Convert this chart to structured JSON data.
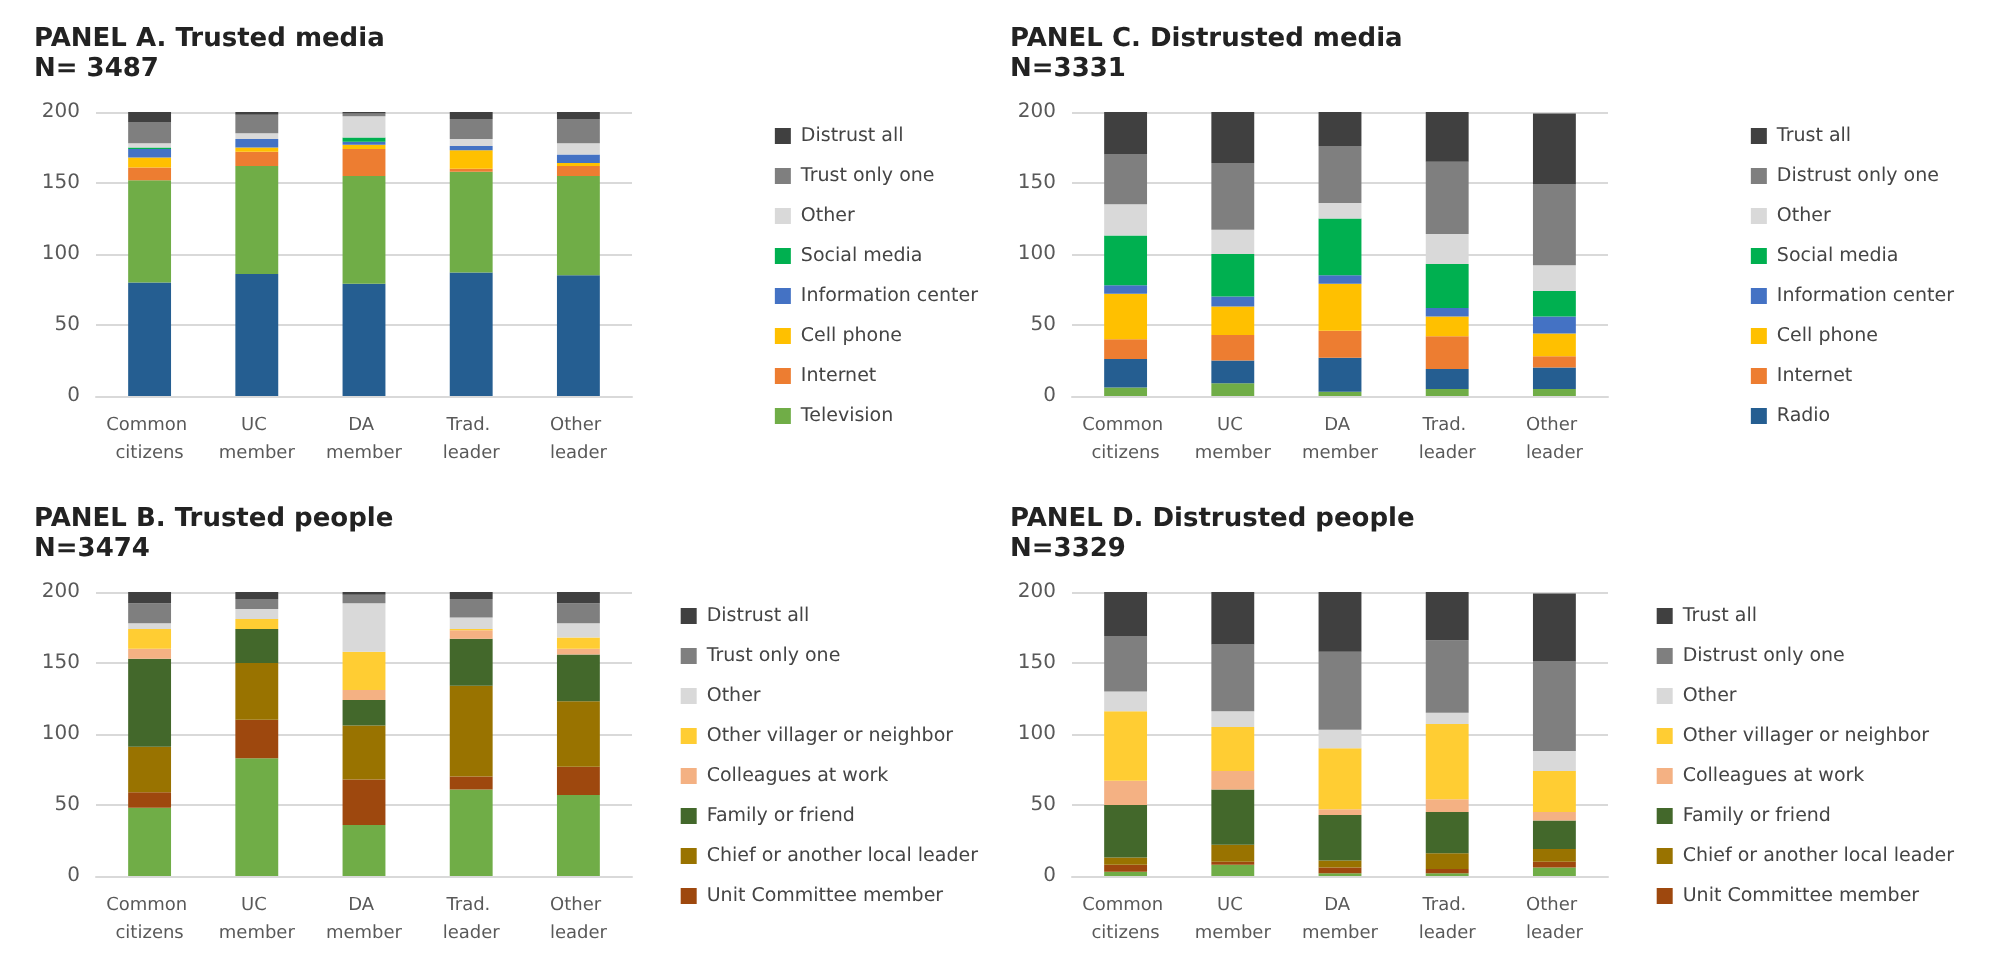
{
  "chart_data": [
    {
      "type": "bar",
      "title": "PANEL A. Trusted media",
      "subtitle": "N= 3487",
      "categories": [
        "Common citizens",
        "UC member",
        "DA member",
        "Trad. leader",
        "Other leader"
      ],
      "stacked": true,
      "ylim": [
        0,
        200
      ],
      "yticks": [
        0,
        50,
        100,
        150,
        200
      ],
      "grid": "y",
      "legend": "right",
      "series": [
        {
          "color": "#255e91",
          "values": [
            80,
            86,
            79,
            87,
            85
          ]
        },
        {
          "name": "Television",
          "color": "#70ad47",
          "values": [
            72,
            76,
            76,
            71,
            70
          ]
        },
        {
          "name": "Internet",
          "color": "#ed7d31",
          "values": [
            9,
            10,
            19,
            2,
            7
          ]
        },
        {
          "name": "Cell phone",
          "color": "#ffc000",
          "values": [
            7,
            3,
            3,
            13,
            2
          ]
        },
        {
          "name": "Information center",
          "color": "#4472c4",
          "values": [
            6,
            6,
            2,
            3,
            6
          ]
        },
        {
          "name": "Social media",
          "color": "#00b050",
          "values": [
            1,
            0,
            3,
            0,
            0
          ]
        },
        {
          "name": "Other",
          "color": "#d9d9d9",
          "values": [
            3,
            4,
            15,
            5,
            8
          ]
        },
        {
          "name": "Trust only one",
          "color": "#7f7f7f",
          "values": [
            15,
            13,
            2,
            14,
            17
          ]
        },
        {
          "name": "Distrust all",
          "color": "#404040",
          "values": [
            7,
            2,
            1,
            5,
            5
          ]
        }
      ]
    },
    {
      "type": "bar",
      "title": "PANEL C. Distrusted media",
      "subtitle": "N=3331",
      "categories": [
        "Common citizens",
        "UC member",
        "DA member",
        "Trad. leader",
        "Other leader"
      ],
      "stacked": true,
      "ylim": [
        0,
        200
      ],
      "yticks": [
        0,
        50,
        100,
        150,
        200
      ],
      "grid": "y",
      "legend": "right",
      "series": [
        {
          "color": "#70ad47",
          "values": [
            6,
            9,
            3,
            5,
            5
          ]
        },
        {
          "name": "Radio",
          "color": "#255e91",
          "values": [
            20,
            16,
            24,
            14,
            15
          ]
        },
        {
          "name": "Internet",
          "color": "#ed7d31",
          "values": [
            14,
            18,
            19,
            23,
            8
          ]
        },
        {
          "name": "Cell phone",
          "color": "#ffc000",
          "values": [
            32,
            20,
            33,
            14,
            16
          ]
        },
        {
          "name": "Information center",
          "color": "#4472c4",
          "values": [
            6,
            7,
            6,
            6,
            12
          ]
        },
        {
          "name": "Social media",
          "color": "#00b050",
          "values": [
            35,
            30,
            40,
            31,
            18
          ]
        },
        {
          "name": "Other",
          "color": "#d9d9d9",
          "values": [
            22,
            17,
            11,
            21,
            18
          ]
        },
        {
          "name": "Distrust only one",
          "color": "#7f7f7f",
          "values": [
            35,
            47,
            40,
            51,
            57
          ]
        },
        {
          "name": "Trust all",
          "color": "#404040",
          "values": [
            30,
            36,
            24,
            35,
            50
          ]
        }
      ]
    },
    {
      "type": "bar",
      "title": "PANEL B. Trusted people",
      "subtitle": "N=3474",
      "categories": [
        "Common citizens",
        "UC member",
        "DA member",
        "Trad. leader",
        "Other leader"
      ],
      "stacked": true,
      "ylim": [
        0,
        200
      ],
      "yticks": [
        0,
        50,
        100,
        150,
        200
      ],
      "grid": "y",
      "legend": "right",
      "series": [
        {
          "color": "#70ad47",
          "values": [
            48,
            83,
            36,
            61,
            57
          ]
        },
        {
          "name": "Unit Committee member",
          "color": "#9e480e",
          "values": [
            11,
            27,
            32,
            9,
            20
          ]
        },
        {
          "name": "Chief or another local leader",
          "color": "#997300",
          "values": [
            32,
            40,
            38,
            64,
            46
          ]
        },
        {
          "name": "Family or friend",
          "color": "#43682b",
          "values": [
            62,
            24,
            18,
            33,
            33
          ]
        },
        {
          "name": "Colleagues at work",
          "color": "#f4b183",
          "values": [
            7,
            0,
            7,
            6,
            4
          ]
        },
        {
          "name": "Other villager or neighbor",
          "color": "#ffcd33",
          "values": [
            14,
            7,
            27,
            1,
            8
          ]
        },
        {
          "name": "Other",
          "color": "#d9d9d9",
          "values": [
            4,
            7,
            34,
            8,
            10
          ]
        },
        {
          "name": "Trust only one",
          "color": "#7f7f7f",
          "values": [
            14,
            7,
            6,
            13,
            14
          ]
        },
        {
          "name": "Distrust all",
          "color": "#404040",
          "values": [
            8,
            5,
            2,
            5,
            8
          ]
        }
      ]
    },
    {
      "type": "bar",
      "title": "PANEL D. Distrusted people",
      "subtitle": "N=3329",
      "categories": [
        "Common citizens",
        "UC member",
        "DA member",
        "Trad. leader",
        "Other leader"
      ],
      "stacked": true,
      "ylim": [
        0,
        200
      ],
      "yticks": [
        0,
        50,
        100,
        150,
        200
      ],
      "grid": "y",
      "legend": "right",
      "series": [
        {
          "color": "#70ad47",
          "values": [
            3,
            8,
            2,
            2,
            6
          ]
        },
        {
          "name": "Unit Committee member",
          "color": "#9e480e",
          "values": [
            5,
            2,
            4,
            3,
            4
          ]
        },
        {
          "name": "Chief or another local leader",
          "color": "#997300",
          "values": [
            5,
            12,
            5,
            11,
            9
          ]
        },
        {
          "name": "Family or friend",
          "color": "#43682b",
          "values": [
            37,
            39,
            32,
            29,
            20
          ]
        },
        {
          "name": "Colleagues at work",
          "color": "#f4b183",
          "values": [
            17,
            13,
            4,
            9,
            6
          ]
        },
        {
          "name": "Other villager or neighbor",
          "color": "#ffcd33",
          "values": [
            49,
            31,
            43,
            53,
            29
          ]
        },
        {
          "name": "Other",
          "color": "#d9d9d9",
          "values": [
            14,
            11,
            13,
            8,
            14
          ]
        },
        {
          "name": "Distrust only one",
          "color": "#7f7f7f",
          "values": [
            39,
            47,
            55,
            51,
            63
          ]
        },
        {
          "name": "Trust all",
          "color": "#404040",
          "values": [
            31,
            37,
            42,
            34,
            48
          ]
        }
      ]
    }
  ]
}
